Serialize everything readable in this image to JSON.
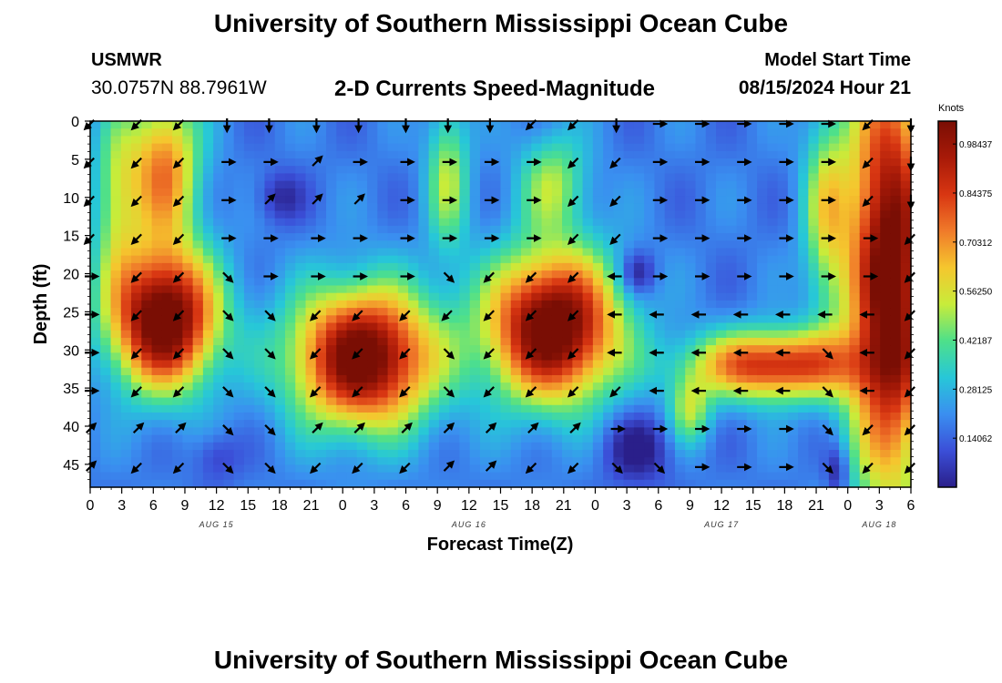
{
  "title": "University of Southern Mississippi Ocean Cube",
  "station": {
    "id": "USMWR",
    "coords": "30.0757N  88.7961W"
  },
  "subtitle": "2-D Currents Speed-Magnitude",
  "model_start": {
    "label": "Model Start Time",
    "value": "08/15/2024 Hour 21"
  },
  "colorbar": {
    "units": "Knots",
    "ticks": [
      "0.98437",
      "0.84375",
      "0.70312",
      "0.56250",
      "0.42187",
      "0.28125",
      "0.14062"
    ],
    "colors": [
      "#2a1f8a",
      "#3b4fd8",
      "#3a8ff0",
      "#27c7d8",
      "#4ee08a",
      "#c8ec3a",
      "#f5c62e",
      "#f07a2a",
      "#d83612",
      "#a81a08",
      "#7a0e04"
    ]
  },
  "footer_title": "University of Southern Mississippi Ocean Cube",
  "chart_data": {
    "type": "heatmap",
    "title": "2-D Currents Speed-Magnitude",
    "xlabel": "Forecast Time(Z)",
    "ylabel": "Depth (ft)",
    "x_tick_labels": [
      "0",
      "3",
      "6",
      "9",
      "12",
      "15",
      "18",
      "21",
      "0",
      "3",
      "6",
      "9",
      "12",
      "15",
      "18",
      "21",
      "0",
      "3",
      "6",
      "9",
      "12",
      "15",
      "18",
      "21",
      "0",
      "3",
      "6"
    ],
    "date_labels": [
      {
        "hour_index": 12,
        "text": "AUG 15"
      },
      {
        "hour_index": 36,
        "text": "AUG 16"
      },
      {
        "hour_index": 60,
        "text": "AUG 17"
      },
      {
        "hour_index": 75,
        "text": "AUG 18"
      }
    ],
    "y_ticks": [
      0,
      5,
      10,
      15,
      20,
      25,
      30,
      35,
      40,
      45
    ],
    "xlim_hours": [
      0,
      78
    ],
    "ylim_ft": [
      0,
      48
    ],
    "value_range_knots": [
      0,
      1.05
    ],
    "features": [
      {
        "t": 7,
        "depth": 26,
        "speed": 0.98,
        "spread_t": 4.5,
        "spread_d": 8
      },
      {
        "t": 7,
        "depth": 6,
        "speed": 0.55,
        "spread_t": 3,
        "spread_d": 9
      },
      {
        "t": 26,
        "depth": 31,
        "speed": 0.95,
        "spread_t": 6,
        "spread_d": 8
      },
      {
        "t": 44,
        "depth": 27,
        "speed": 0.98,
        "spread_t": 5.5,
        "spread_d": 8.5
      },
      {
        "t": 44,
        "depth": 8,
        "speed": 0.3,
        "spread_t": 3,
        "spread_d": 6
      },
      {
        "t": 65,
        "depth": 32,
        "speed": 0.72,
        "spread_t": 7,
        "spread_d": 4
      },
      {
        "t": 76,
        "depth": 20,
        "speed": 0.95,
        "spread_t": 3.5,
        "spread_d": 26
      },
      {
        "t": 2.5,
        "depth": 10,
        "speed": 0.3,
        "spread_t": 2,
        "spread_d": 10
      },
      {
        "t": 34,
        "depth": 7,
        "speed": 0.32,
        "spread_t": 1.8,
        "spread_d": 9
      },
      {
        "t": 57,
        "depth": 38,
        "speed": 0.3,
        "spread_t": 1.8,
        "spread_d": 4
      },
      {
        "t": 70,
        "depth": 12,
        "speed": 0.35,
        "spread_t": 2,
        "spread_d": 12
      },
      {
        "t": 18,
        "depth": 10,
        "speed": -0.15,
        "spread_t": 2,
        "spread_d": 3
      },
      {
        "t": 52,
        "depth": 20,
        "speed": -0.2,
        "spread_t": 1.5,
        "spread_d": 2.5
      },
      {
        "t": 52,
        "depth": 43,
        "speed": -0.2,
        "spread_t": 3,
        "spread_d": 4
      },
      {
        "t": 71,
        "depth": 46,
        "speed": -0.2,
        "spread_t": 1,
        "spread_d": 3
      },
      {
        "t": 12,
        "depth": 44,
        "speed": -0.12,
        "spread_t": 2,
        "spread_d": 3
      }
    ],
    "vectors": {
      "times": [
        0,
        4.5,
        8.5,
        13,
        17,
        21.5,
        25.5,
        30,
        34,
        38,
        42,
        46,
        50,
        54,
        58,
        62,
        66,
        70,
        74,
        78
      ],
      "depths": [
        0,
        5,
        10,
        15,
        20,
        25,
        30,
        35,
        40,
        45
      ],
      "angles_deg": [
        [
          135,
          135,
          135,
          90,
          90,
          90,
          90,
          90,
          90,
          90,
          135,
          135,
          90,
          0,
          0,
          0,
          0,
          0,
          135,
          90
        ],
        [
          135,
          135,
          135,
          0,
          0,
          315,
          0,
          0,
          0,
          0,
          0,
          135,
          135,
          0,
          0,
          0,
          0,
          0,
          135,
          90
        ],
        [
          135,
          135,
          135,
          0,
          315,
          315,
          315,
          0,
          0,
          0,
          0,
          135,
          135,
          0,
          0,
          0,
          0,
          0,
          135,
          90
        ],
        [
          135,
          135,
          135,
          0,
          0,
          0,
          0,
          0,
          0,
          0,
          0,
          135,
          135,
          0,
          0,
          0,
          0,
          0,
          0,
          135
        ],
        [
          0,
          135,
          135,
          45,
          0,
          0,
          0,
          0,
          45,
          135,
          135,
          135,
          180,
          0,
          0,
          0,
          0,
          0,
          0,
          135
        ],
        [
          0,
          135,
          135,
          45,
          45,
          135,
          135,
          135,
          135,
          135,
          135,
          135,
          180,
          180,
          180,
          180,
          180,
          180,
          180,
          135
        ],
        [
          0,
          135,
          135,
          45,
          45,
          135,
          135,
          135,
          45,
          135,
          135,
          135,
          180,
          180,
          180,
          180,
          180,
          45,
          180,
          135
        ],
        [
          0,
          135,
          135,
          45,
          45,
          135,
          135,
          135,
          45,
          135,
          135,
          135,
          135,
          180,
          180,
          180,
          180,
          45,
          180,
          135
        ],
        [
          315,
          315,
          315,
          45,
          45,
          315,
          315,
          315,
          315,
          315,
          315,
          315,
          0,
          0,
          0,
          0,
          0,
          45,
          135,
          135
        ],
        [
          315,
          135,
          135,
          45,
          45,
          135,
          135,
          135,
          315,
          315,
          135,
          135,
          45,
          45,
          0,
          0,
          0,
          45,
          135,
          135
        ]
      ]
    }
  }
}
